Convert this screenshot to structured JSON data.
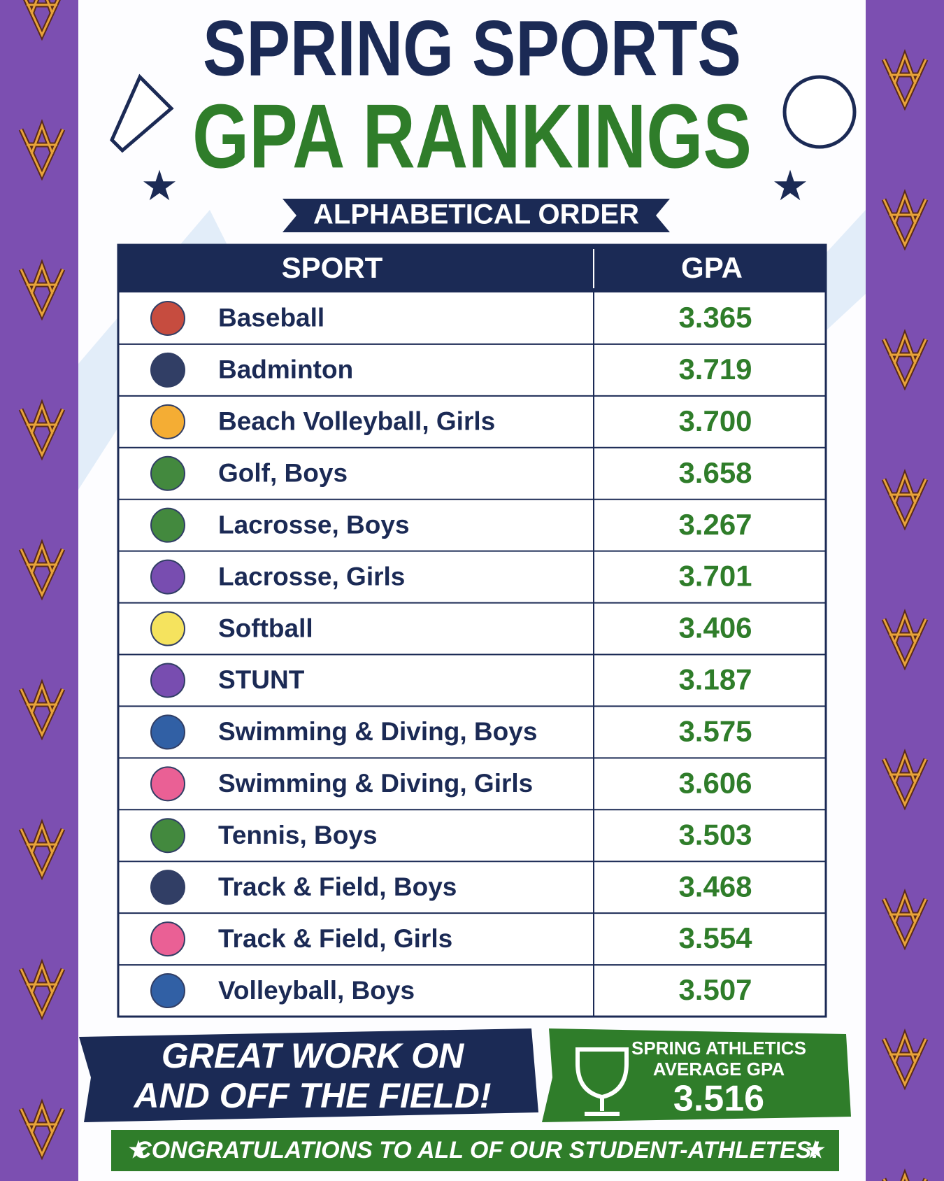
{
  "header": {
    "title_line1": "SPRING SPORTS",
    "title_line2": "GPA RANKINGS",
    "subtitle": "ALPHABETICAL ORDER"
  },
  "table": {
    "columns": [
      "SPORT",
      "GPA"
    ],
    "rows": [
      [
        "Baseball",
        "3.365"
      ],
      [
        "Badminton",
        "3.719"
      ],
      [
        "Beach Volleyball, Girls",
        "3.700"
      ],
      [
        "Golf, Boys",
        "3.658"
      ],
      [
        "Lacrosse, Boys",
        "3.267"
      ],
      [
        "Lacrosse, Girls",
        "3.701"
      ],
      [
        "Softball",
        "3.406"
      ],
      [
        "STUNT",
        "3.187"
      ],
      [
        "Swimming & Diving, Boys",
        "3.575"
      ],
      [
        "Swimming & Diving, Girls",
        "3.606"
      ],
      [
        "Tennis, Boys",
        "3.503"
      ],
      [
        "Track & Field, Boys",
        "3.468"
      ],
      [
        "Track & Field, Girls",
        "3.554"
      ],
      [
        "Volleyball, Boys",
        "3.507"
      ]
    ]
  },
  "footer": {
    "message_line1": "GREAT WORK ON",
    "message_line2": "AND OFF THE FIELD!",
    "average_label_line1": "SPRING ATHLETICS",
    "average_label_line2": "AVERAGE GPA",
    "average_value": "3.516",
    "congrats": "CONGRATULATIONS TO ALL OF OUR STUDENT-ATHLETES!"
  }
}
